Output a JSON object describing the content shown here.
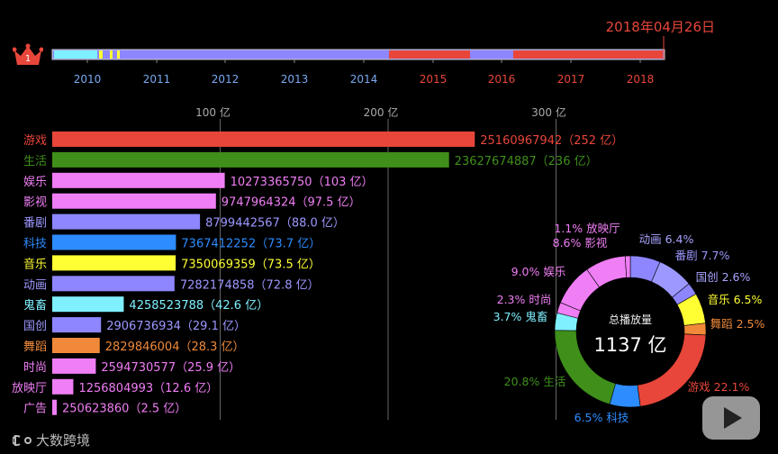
{
  "date_label": "2018年04月26日",
  "logo_text": "大数跨境",
  "crown_rank": "1",
  "timeline": {
    "years": [
      "2010",
      "2011",
      "2012",
      "2013",
      "2014",
      "2015",
      "2016",
      "2017",
      "2018"
    ],
    "past_color": "#7aa8f0",
    "future_color": "#e8463a"
  },
  "chart_data": [
    {
      "type": "bar",
      "orientation": "horizontal",
      "title": "",
      "axis_ticks": [
        "100 亿",
        "200 亿",
        "300 亿"
      ],
      "axis_tick_values": [
        100,
        200,
        300
      ],
      "unit": "亿",
      "categories": [
        "游戏",
        "生活",
        "娱乐",
        "影视",
        "番剧",
        "科技",
        "音乐",
        "动画",
        "鬼畜",
        "国创",
        "舞蹈",
        "时尚",
        "放映厅",
        "广告"
      ],
      "values": [
        25160967942,
        23627674887,
        10273365750,
        9747964324,
        8799442567,
        7367412252,
        7350069359,
        7282174858,
        4258523788,
        2906736934,
        2829846004,
        2594730577,
        1256804993,
        250623860
      ],
      "value_labels": [
        "25160967942（252 亿）",
        "23627674887（236 亿）",
        "10273365750（103 亿）",
        "9747964324（97.5 亿）",
        "8799442567（88.0 亿）",
        "7367412252（73.7 亿）",
        "7350069359（73.5 亿）",
        "7282174858（72.8 亿）",
        "4258523788（42.6 亿）",
        "2906736934（29.1 亿）",
        "2829846004（28.3 亿）",
        "2594730577（25.9 亿）",
        "1256804993（12.6 亿）",
        "250623860（2.5 亿）"
      ],
      "colors": [
        "#e8463a",
        "#3f8f1a",
        "#f07ef5",
        "#f07ef5",
        "#8d86ff",
        "#2d8cff",
        "#ffff33",
        "#8d86ff",
        "#7ff0ff",
        "#8d86ff",
        "#f08a3a",
        "#f07ef5",
        "#f07ef5",
        "#f07ef5"
      ],
      "label_colors": [
        "#e8463a",
        "#3f8f1a",
        "#f07ef5",
        "#f07ef5",
        "#9d98ff",
        "#2d8cff",
        "#ffff33",
        "#9d98ff",
        "#7ff0ff",
        "#9d98ff",
        "#f08a3a",
        "#f07ef5",
        "#f07ef5",
        "#f07ef5"
      ]
    },
    {
      "type": "pie",
      "variant": "donut",
      "center_label": "总播放量",
      "center_value": "1137 亿",
      "slices": [
        {
          "name": "动画",
          "label": "动画 6.4%",
          "value": 6.4,
          "color": "#8d86ff"
        },
        {
          "name": "番剧",
          "label": "番剧 7.7%",
          "value": 7.7,
          "color": "#9d98ff"
        },
        {
          "name": "国创",
          "label": "国创 2.6%",
          "value": 2.6,
          "color": "#8d86ff"
        },
        {
          "name": "音乐",
          "label": "音乐 6.5%",
          "value": 6.5,
          "color": "#ffff33"
        },
        {
          "name": "舞蹈",
          "label": "舞蹈 2.5%",
          "value": 2.5,
          "color": "#f08a3a"
        },
        {
          "name": "游戏",
          "label": "游戏 22.1%",
          "value": 22.1,
          "color": "#e8463a"
        },
        {
          "name": "科技",
          "label": "6.5%  科技",
          "value": 6.5,
          "color": "#2d8cff"
        },
        {
          "name": "生活",
          "label": "20.8%  生活",
          "value": 20.8,
          "color": "#3f8f1a"
        },
        {
          "name": "鬼畜",
          "label": "3.7%  鬼畜",
          "value": 3.7,
          "color": "#7ff0ff"
        },
        {
          "name": "时尚",
          "label": "2.3%  时尚",
          "value": 2.3,
          "color": "#f07ef5"
        },
        {
          "name": "娱乐",
          "label": "9.0%  娱乐",
          "value": 9.0,
          "color": "#f07ef5"
        },
        {
          "name": "影视",
          "label": "8.6% 影视",
          "value": 8.6,
          "color": "#f07ef5"
        },
        {
          "name": "放映厅",
          "label": "1.1%  放映厅",
          "value": 1.1,
          "color": "#f07ef5"
        }
      ]
    }
  ]
}
